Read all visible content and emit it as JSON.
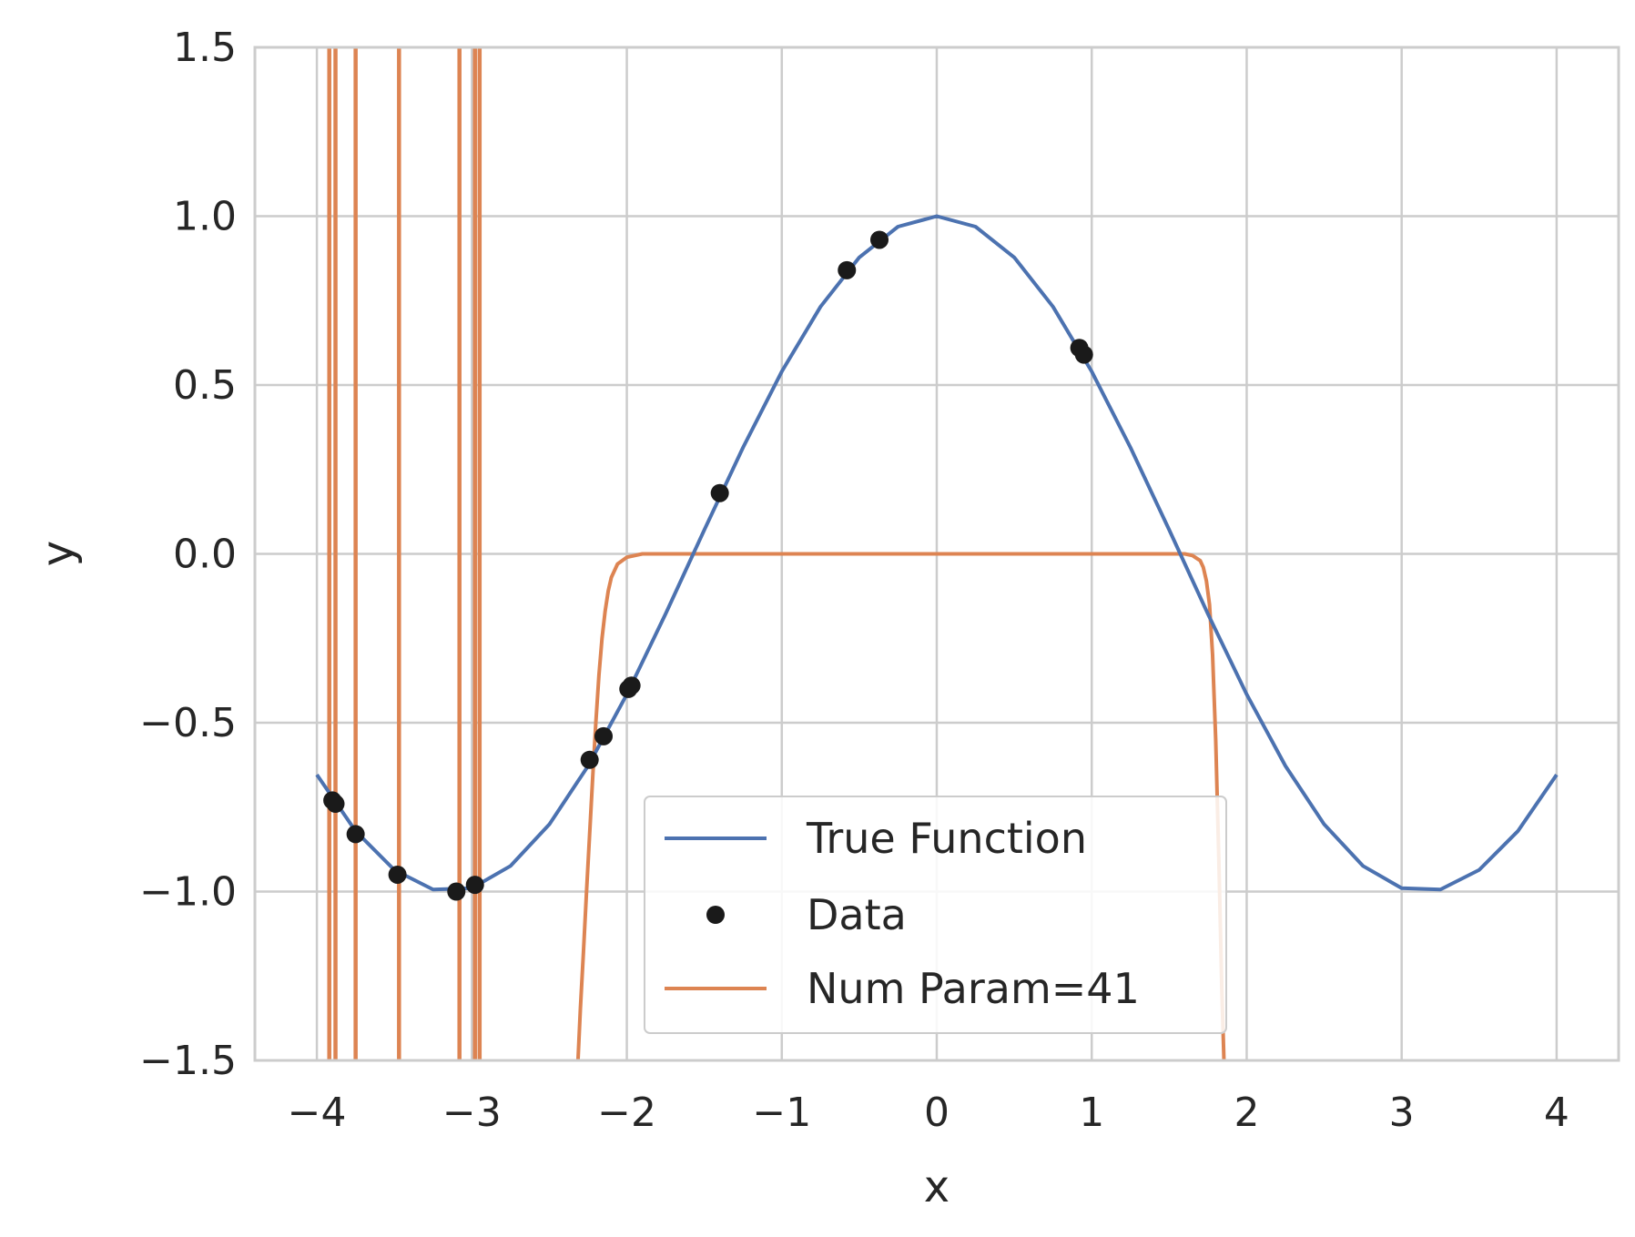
{
  "chart_data": {
    "type": "line",
    "title": "",
    "xlabel": "x",
    "ylabel": "y",
    "xlim": [
      -4.4,
      4.4
    ],
    "ylim": [
      -1.5,
      1.5
    ],
    "grid": true,
    "legend_placement": "lower-center",
    "x_ticks": [
      -4,
      -3,
      -2,
      -1,
      0,
      1,
      2,
      3,
      4
    ],
    "x_tick_labels": [
      "−4",
      "−3",
      "−2",
      "−1",
      "0",
      "1",
      "2",
      "3",
      "4"
    ],
    "y_ticks": [
      -1.5,
      -1.0,
      -0.5,
      0.0,
      0.5,
      1.0,
      1.5
    ],
    "y_tick_labels": [
      "−1.5",
      "−1.0",
      "−0.5",
      "0.0",
      "0.5",
      "1.0",
      "1.5"
    ],
    "series": [
      {
        "name": "True Function",
        "kind": "line",
        "color": "#4c72b0",
        "x": [
          -4.0,
          -3.75,
          -3.5,
          -3.25,
          -3.0,
          -2.75,
          -2.5,
          -2.25,
          -2.0,
          -1.75,
          -1.5,
          -1.25,
          -1.0,
          -0.75,
          -0.5,
          -0.25,
          0.0,
          0.25,
          0.5,
          0.75,
          1.0,
          1.25,
          1.5,
          1.75,
          2.0,
          2.25,
          2.5,
          2.75,
          3.0,
          3.25,
          3.5,
          3.75,
          4.0
        ],
        "y": [
          -0.654,
          -0.821,
          -0.936,
          -0.994,
          -0.99,
          -0.924,
          -0.801,
          -0.628,
          -0.416,
          -0.178,
          0.071,
          0.315,
          0.54,
          0.732,
          0.878,
          0.969,
          1.0,
          0.969,
          0.878,
          0.732,
          0.54,
          0.315,
          0.071,
          -0.178,
          -0.416,
          -0.628,
          -0.801,
          -0.924,
          -0.99,
          -0.994,
          -0.936,
          -0.821,
          -0.654
        ]
      },
      {
        "name": "Data",
        "kind": "scatter",
        "color": "#1a1a1a",
        "x": [
          -3.9,
          -3.88,
          -3.75,
          -3.48,
          -3.1,
          -2.98,
          -2.24,
          -2.15,
          -1.99,
          -1.97,
          -1.4,
          -0.58,
          -0.37,
          0.92,
          0.95
        ],
        "y": [
          -0.73,
          -0.74,
          -0.83,
          -0.95,
          -1.0,
          -0.98,
          -0.61,
          -0.54,
          -0.4,
          -0.39,
          0.18,
          0.84,
          0.93,
          0.61,
          0.59
        ]
      },
      {
        "name": "Num Param=41",
        "kind": "line",
        "color": "#dd8452",
        "x": [
          -2.32,
          -2.3,
          -2.28,
          -2.26,
          -2.24,
          -2.22,
          -2.2,
          -2.18,
          -2.16,
          -2.14,
          -2.12,
          -2.1,
          -2.06,
          -2.0,
          -1.9,
          -1.8,
          -1.5,
          -1.0,
          0.0,
          1.0,
          1.5,
          1.6,
          1.65,
          1.7,
          1.72,
          1.74,
          1.76,
          1.78,
          1.8,
          1.82,
          1.84,
          1.86
        ],
        "y": [
          -1.55,
          -1.35,
          -1.18,
          -1.0,
          -0.83,
          -0.66,
          -0.5,
          -0.36,
          -0.25,
          -0.17,
          -0.11,
          -0.07,
          -0.03,
          -0.01,
          0.0,
          0.0,
          0.0,
          0.0,
          0.0,
          0.0,
          0.0,
          0.0,
          -0.005,
          -0.02,
          -0.04,
          -0.08,
          -0.15,
          -0.3,
          -0.55,
          -0.9,
          -1.3,
          -1.6
        ],
        "spikes_x": [
          -3.92,
          -3.88,
          -3.75,
          -3.47,
          -3.08,
          -2.98,
          -2.95
        ]
      }
    ]
  }
}
